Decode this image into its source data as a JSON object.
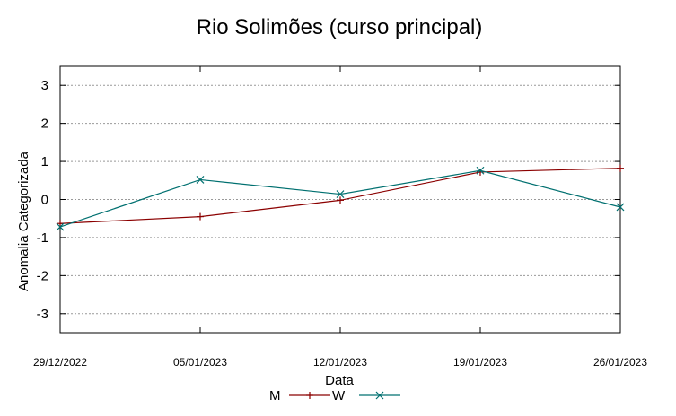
{
  "chart_data": {
    "type": "line",
    "title": "Rio Solimões (curso principal)",
    "xlabel": "Data",
    "ylabel": "Anomalia Categorizada",
    "categories": [
      "29/12/2022",
      "05/01/2023",
      "12/01/2023",
      "19/01/2023",
      "26/01/2023"
    ],
    "yticks": [
      "3",
      "2",
      "1",
      "0",
      "-1",
      "-2",
      "-3"
    ],
    "ylim": [
      -3.5,
      3.5
    ],
    "grid": true,
    "legend_position": "bottom-center",
    "series": [
      {
        "name": "M",
        "color": "#8b0000",
        "marker": "plus",
        "values": [
          -0.63,
          -0.45,
          -0.02,
          0.72,
          0.82
        ]
      },
      {
        "name": "W",
        "color": "#007070",
        "marker": "cross",
        "values": [
          -0.72,
          0.52,
          0.14,
          0.76,
          -0.2
        ]
      }
    ]
  }
}
